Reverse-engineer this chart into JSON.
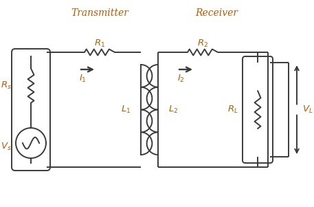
{
  "title_transmitter": "Transmitter",
  "title_receiver": "Receiver",
  "label_R1": "$R_1$",
  "label_R2": "$R_2$",
  "label_Rs": "$R_s$",
  "label_RL": "$R_L$",
  "label_L1": "$L_1$",
  "label_L2": "$L_2$",
  "label_Vs": "$V_s$",
  "label_VL": "$V_L$",
  "label_I1": "$I_1$",
  "label_I2": "$I_2$",
  "line_color": "#3a3a3a",
  "component_color": "#3a3a3a",
  "text_color": "#b85c00",
  "title_color": "#b85c00",
  "bg_color": "#ffffff"
}
